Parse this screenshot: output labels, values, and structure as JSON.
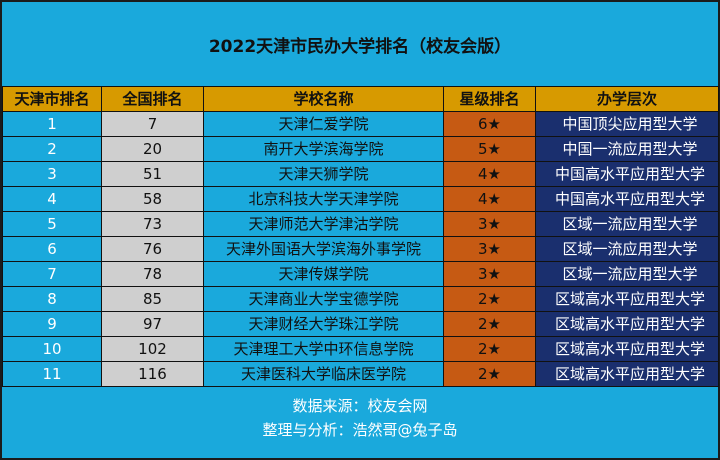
{
  "title": "2022天津市民办大学排名（校友会版）",
  "headers": [
    "天津市排名",
    "全国排名",
    "学校名称",
    "星级排名",
    "办学层次"
  ],
  "rows": [
    {
      "city_rank": "1",
      "national_rank": "7",
      "school": "天津仁爱学院",
      "stars": "6★",
      "level": "中国顶尖应用型大学"
    },
    {
      "city_rank": "2",
      "national_rank": "20",
      "school": "南开大学滨海学院",
      "stars": "5★",
      "level": "中国一流应用型大学"
    },
    {
      "city_rank": "3",
      "national_rank": "51",
      "school": "天津天狮学院",
      "stars": "4★",
      "level": "中国高水平应用型大学"
    },
    {
      "city_rank": "4",
      "national_rank": "58",
      "school": "北京科技大学天津学院",
      "stars": "4★",
      "level": "中国高水平应用型大学"
    },
    {
      "city_rank": "5",
      "national_rank": "73",
      "school": "天津师范大学津沽学院",
      "stars": "3★",
      "level": "区域一流应用型大学"
    },
    {
      "city_rank": "6",
      "national_rank": "76",
      "school": "天津外国语大学滨海外事学院",
      "stars": "3★",
      "level": "区域一流应用型大学"
    },
    {
      "city_rank": "7",
      "national_rank": "78",
      "school": "天津传媒学院",
      "stars": "3★",
      "level": "区域一流应用型大学"
    },
    {
      "city_rank": "8",
      "national_rank": "85",
      "school": "天津商业大学宝德学院",
      "stars": "2★",
      "level": "区域高水平应用型大学"
    },
    {
      "city_rank": "9",
      "national_rank": "97",
      "school": "天津财经大学珠江学院",
      "stars": "2★",
      "level": "区域高水平应用型大学"
    },
    {
      "city_rank": "10",
      "national_rank": "102",
      "school": "天津理工大学中环信息学院",
      "stars": "2★",
      "level": "区域高水平应用型大学"
    },
    {
      "city_rank": "11",
      "national_rank": "116",
      "school": "天津医科大学临床医学院",
      "stars": "2★",
      "level": "区域高水平应用型大学"
    }
  ],
  "footer": {
    "source": "数据来源：校友会网",
    "credit": "整理与分析：浩然哥@兔子岛"
  }
}
